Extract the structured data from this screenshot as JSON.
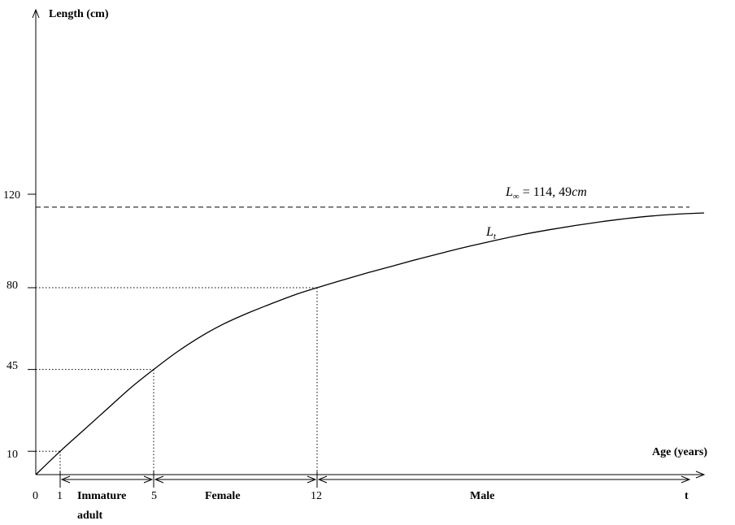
{
  "chart_data": {
    "type": "line",
    "xlabel": "Age  (years)",
    "ylabel": "Length (cm)",
    "x_tick_labels": [
      "0",
      "1",
      "5",
      "12",
      "t"
    ],
    "y_ticks": [
      10,
      45,
      80,
      120
    ],
    "y_tick_labels": [
      "10",
      "45",
      "80",
      "120"
    ],
    "series": [
      {
        "name": "L_t",
        "x": [
          0,
          1,
          2,
          3,
          4,
          5,
          6,
          7,
          8,
          9,
          10,
          11,
          12,
          13,
          14,
          15,
          16,
          17,
          18,
          19,
          20,
          21,
          22,
          23,
          24,
          25,
          26,
          27
        ],
        "y": [
          0,
          10,
          19,
          28,
          37,
          45,
          52.5,
          59,
          64.5,
          69,
          73,
          76.8,
          80,
          83.3,
          86.5,
          89.5,
          92.5,
          95.3,
          98,
          100.5,
          102.8,
          104.8,
          106.6,
          108.2,
          109.6,
          110.7,
          111.5,
          112
        ]
      }
    ],
    "asymptote": {
      "y": 114.49,
      "label_base": "L",
      "label_sub": "∞",
      "label_rest": " = 114, 49",
      "label_unit": "cm"
    },
    "curve_label": {
      "base": "L",
      "sub": "t"
    },
    "reference_points": [
      {
        "x": 1,
        "y": 10
      },
      {
        "x": 5,
        "y": 45
      },
      {
        "x": 12,
        "y": 80
      }
    ],
    "phases": [
      {
        "label": "Immature",
        "label2": "adult",
        "from": 1,
        "to": 5
      },
      {
        "label": "Female",
        "from": 5,
        "to": 12
      },
      {
        "label": "Male",
        "from": 12,
        "to": 27
      }
    ],
    "grid": false,
    "legend": "none"
  }
}
